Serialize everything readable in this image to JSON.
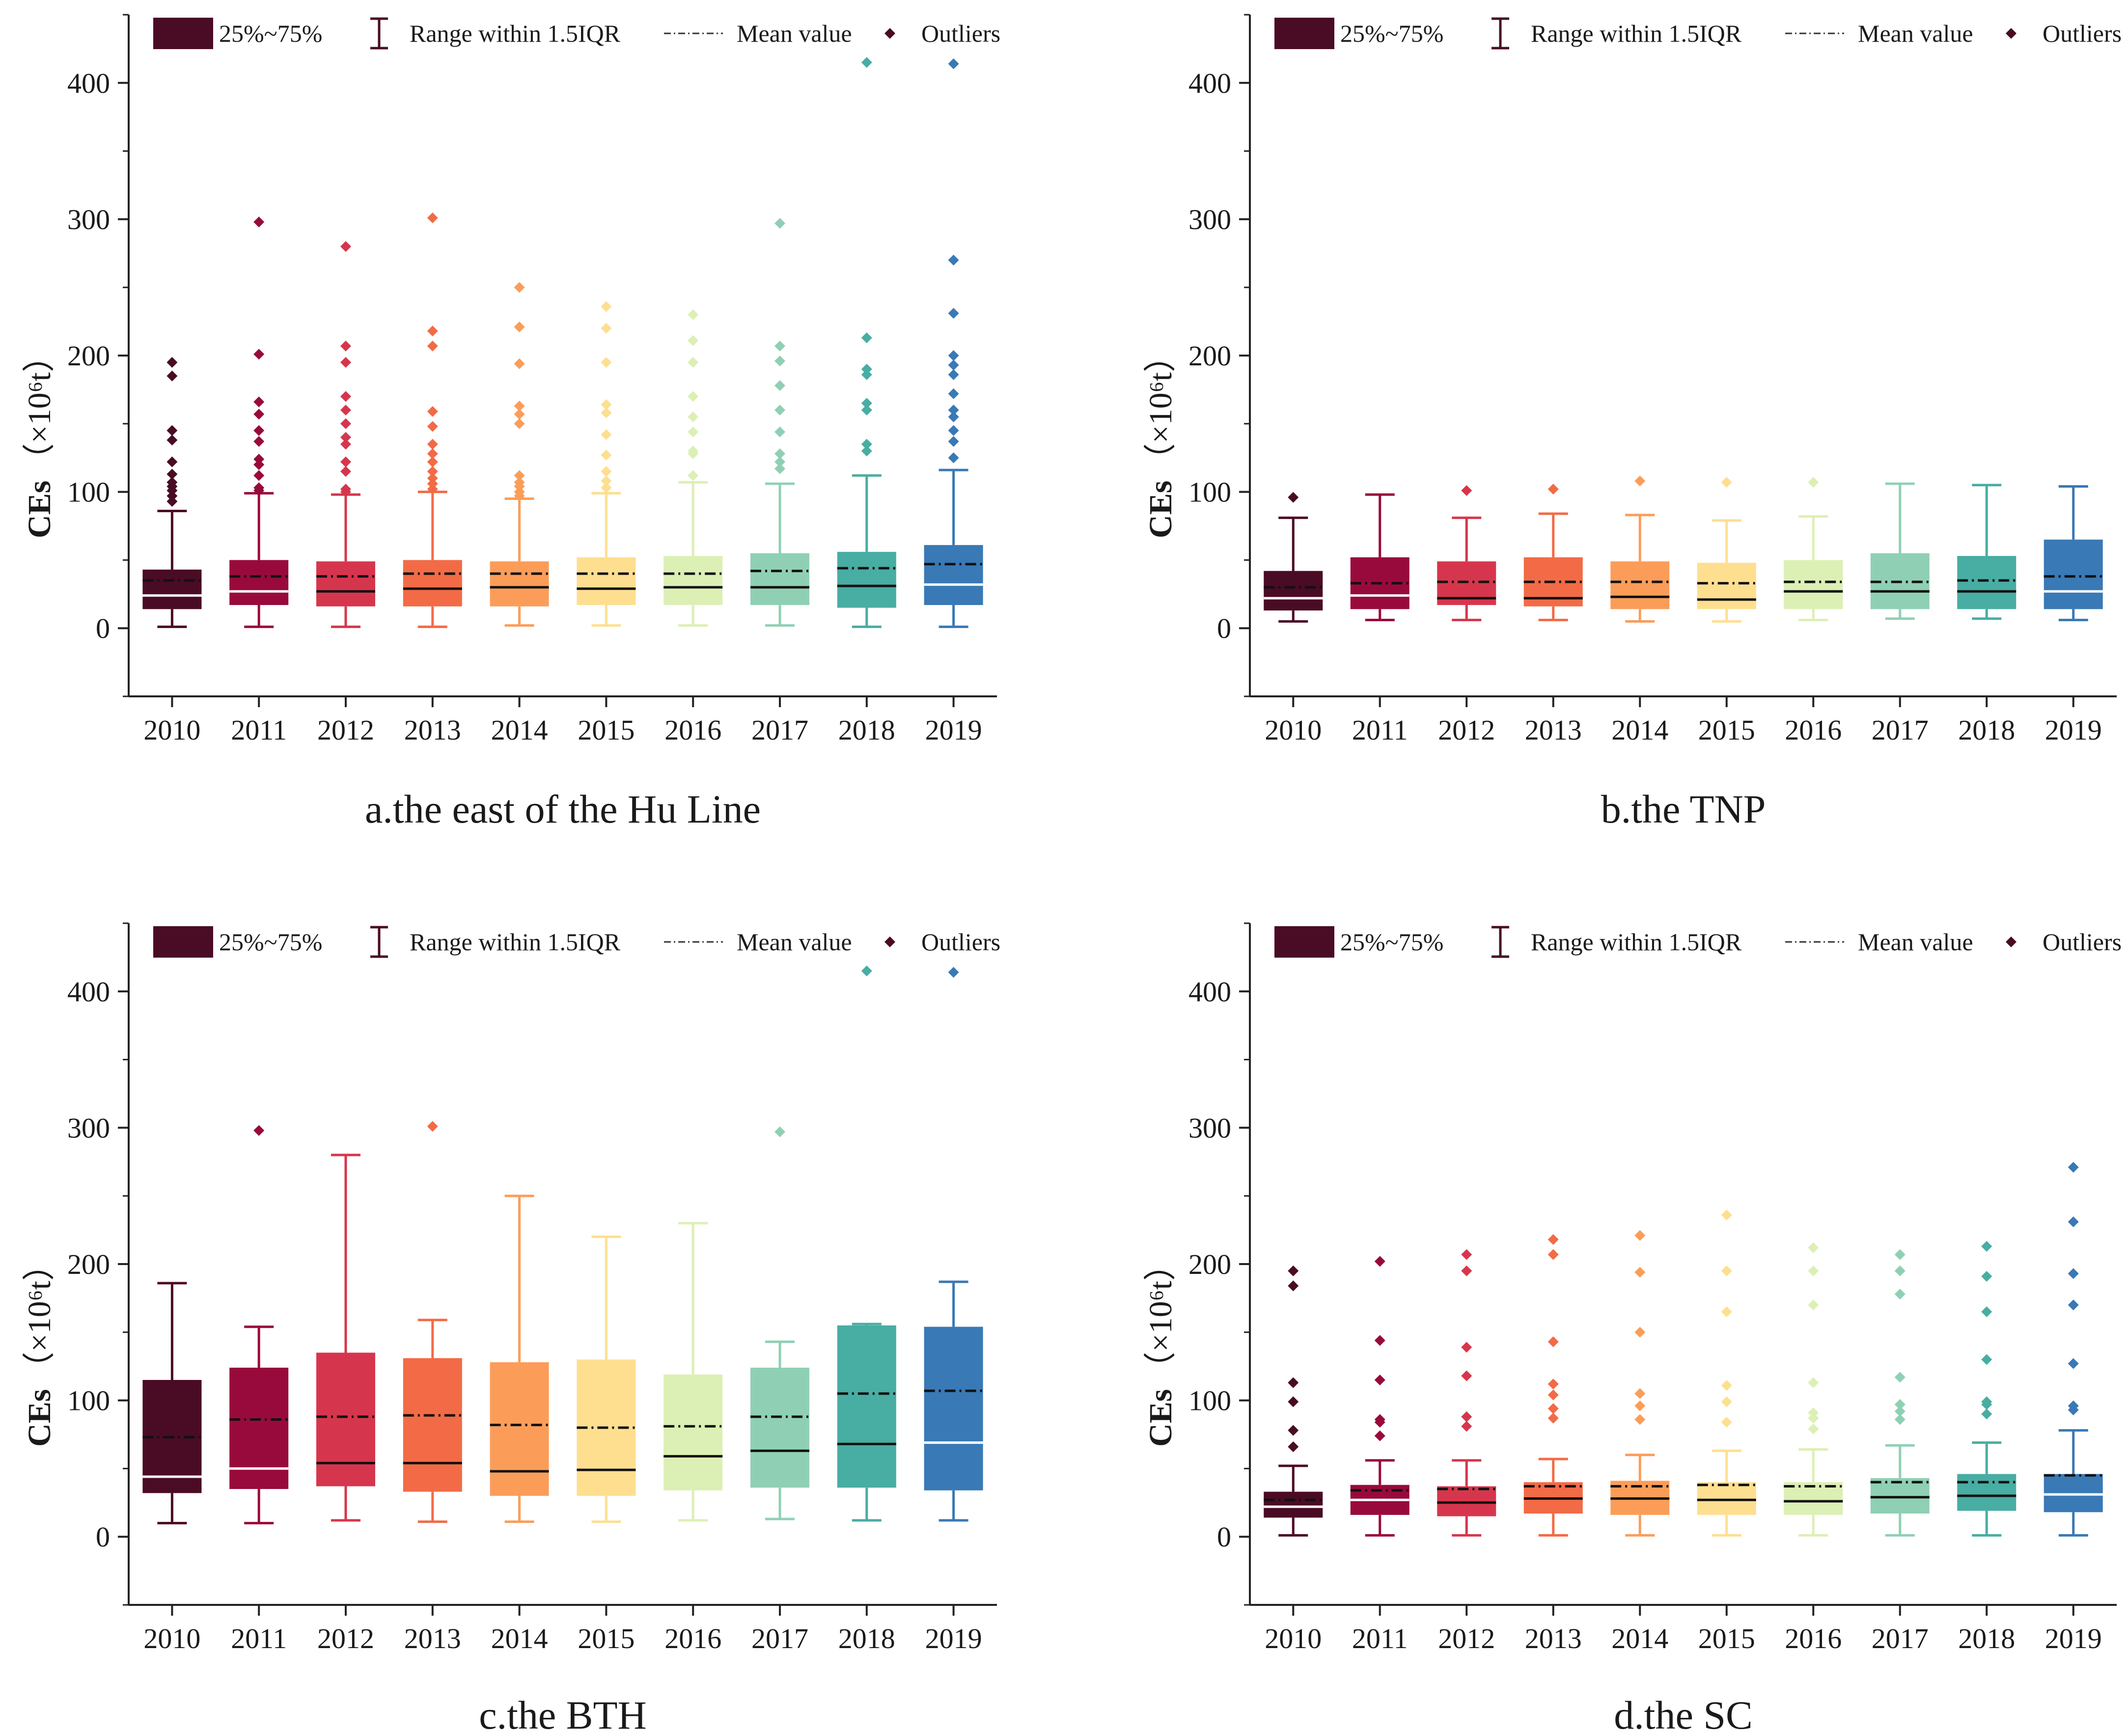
{
  "legend": {
    "box_label": "25%~75%",
    "whisker_label": "Range within 1.5IQR",
    "mean_label": "Mean value",
    "outlier_label": "Outliers"
  },
  "colors": [
    "#4a0b24",
    "#990a3c",
    "#d6364d",
    "#f26b46",
    "#fb9d59",
    "#fedf90",
    "#dcf0b5",
    "#8fd0b4",
    "#48ada3",
    "#3979b5"
  ],
  "chart_data": [
    {
      "type": "box",
      "title": "a.the east of the Hu Line",
      "ylabel": "CEs",
      "ylabel_unit": "（×10⁶t）",
      "xlabel": "",
      "ylim": [
        -50,
        450
      ],
      "yticks": [
        0,
        100,
        200,
        300,
        400
      ],
      "categories": [
        "2010",
        "2011",
        "2012",
        "2013",
        "2014",
        "2015",
        "2016",
        "2017",
        "2018",
        "2019"
      ],
      "series": [
        {
          "name": "2010",
          "whisker_low": 1,
          "q1": 14,
          "median": 24,
          "mean": 35,
          "q3": 43,
          "whisker_high": 86,
          "outliers": [
            93,
            97,
            101,
            104,
            107,
            113,
            122,
            138,
            145,
            185,
            195
          ]
        },
        {
          "name": "2011",
          "whisker_low": 1,
          "q1": 17,
          "median": 27,
          "mean": 38,
          "q3": 50,
          "whisker_high": 99,
          "outliers": [
            101,
            103,
            112,
            120,
            124,
            137,
            145,
            157,
            166,
            201,
            298
          ]
        },
        {
          "name": "2012",
          "whisker_low": 1,
          "q1": 16,
          "median": 27,
          "mean": 38,
          "q3": 49,
          "whisker_high": 98,
          "outliers": [
            100,
            102,
            115,
            122,
            135,
            140,
            150,
            160,
            170,
            195,
            207,
            280
          ]
        },
        {
          "name": "2013",
          "whisker_low": 1,
          "q1": 16,
          "median": 29,
          "mean": 40,
          "q3": 50,
          "whisker_high": 100,
          "outliers": [
            102,
            106,
            110,
            115,
            122,
            128,
            135,
            148,
            159,
            207,
            218,
            301
          ]
        },
        {
          "name": "2014",
          "whisker_low": 2,
          "q1": 16,
          "median": 30,
          "mean": 40,
          "q3": 49,
          "whisker_high": 95,
          "outliers": [
            97,
            100,
            104,
            107,
            112,
            150,
            157,
            163,
            194,
            221,
            250
          ]
        },
        {
          "name": "2015",
          "whisker_low": 2,
          "q1": 17,
          "median": 29,
          "mean": 40,
          "q3": 52,
          "whisker_high": 99,
          "outliers": [
            103,
            108,
            115,
            127,
            142,
            158,
            164,
            195,
            220,
            236
          ]
        },
        {
          "name": "2016",
          "whisker_low": 2,
          "q1": 17,
          "median": 30,
          "mean": 40,
          "q3": 53,
          "whisker_high": 107,
          "outliers": [
            112,
            128,
            130,
            144,
            155,
            170,
            195,
            211,
            230
          ]
        },
        {
          "name": "2017",
          "whisker_low": 2,
          "q1": 17,
          "median": 30,
          "mean": 42,
          "q3": 55,
          "whisker_high": 106,
          "outliers": [
            117,
            122,
            128,
            144,
            160,
            178,
            196,
            207,
            297
          ]
        },
        {
          "name": "2018",
          "whisker_low": 1,
          "q1": 15,
          "median": 31,
          "mean": 44,
          "q3": 56,
          "whisker_high": 112,
          "outliers": [
            130,
            135,
            160,
            165,
            186,
            190,
            213,
            415
          ]
        },
        {
          "name": "2019",
          "whisker_low": 1,
          "q1": 17,
          "median": 32,
          "mean": 47,
          "q3": 61,
          "whisker_high": 116,
          "outliers": [
            125,
            137,
            145,
            155,
            160,
            172,
            186,
            193,
            200,
            231,
            270,
            414
          ]
        }
      ]
    },
    {
      "type": "box",
      "title": "b.the TNP",
      "ylabel": "CEs",
      "ylabel_unit": "（×10⁶t）",
      "xlabel": "",
      "ylim": [
        -50,
        450
      ],
      "yticks": [
        0,
        100,
        200,
        300,
        400
      ],
      "categories": [
        "2010",
        "2011",
        "2012",
        "2013",
        "2014",
        "2015",
        "2016",
        "2017",
        "2018",
        "2019"
      ],
      "series": [
        {
          "name": "2010",
          "whisker_low": 5,
          "q1": 13,
          "median": 22,
          "mean": 30,
          "q3": 42,
          "whisker_high": 81,
          "outliers": [
            96
          ]
        },
        {
          "name": "2011",
          "whisker_low": 6,
          "q1": 14,
          "median": 24,
          "mean": 33,
          "q3": 52,
          "whisker_high": 98,
          "outliers": []
        },
        {
          "name": "2012",
          "whisker_low": 6,
          "q1": 17,
          "median": 22,
          "mean": 34,
          "q3": 49,
          "whisker_high": 81,
          "outliers": [
            101
          ]
        },
        {
          "name": "2013",
          "whisker_low": 6,
          "q1": 16,
          "median": 22,
          "mean": 34,
          "q3": 52,
          "whisker_high": 84,
          "outliers": [
            102
          ]
        },
        {
          "name": "2014",
          "whisker_low": 5,
          "q1": 14,
          "median": 23,
          "mean": 34,
          "q3": 49,
          "whisker_high": 83,
          "outliers": [
            108
          ]
        },
        {
          "name": "2015",
          "whisker_low": 5,
          "q1": 14,
          "median": 21,
          "mean": 33,
          "q3": 48,
          "whisker_high": 79,
          "outliers": [
            107
          ]
        },
        {
          "name": "2016",
          "whisker_low": 6,
          "q1": 14,
          "median": 27,
          "mean": 34,
          "q3": 50,
          "whisker_high": 82,
          "outliers": [
            107
          ]
        },
        {
          "name": "2017",
          "whisker_low": 7,
          "q1": 14,
          "median": 27,
          "mean": 34,
          "q3": 55,
          "whisker_high": 106,
          "outliers": []
        },
        {
          "name": "2018",
          "whisker_low": 7,
          "q1": 14,
          "median": 27,
          "mean": 35,
          "q3": 53,
          "whisker_high": 105,
          "outliers": []
        },
        {
          "name": "2019",
          "whisker_low": 6,
          "q1": 14,
          "median": 27,
          "mean": 38,
          "q3": 65,
          "whisker_high": 104,
          "outliers": []
        }
      ]
    },
    {
      "type": "box",
      "title": "c.the BTH",
      "ylabel": "CEs",
      "ylabel_unit": "（×10⁶t）",
      "xlabel": "",
      "ylim": [
        -50,
        450
      ],
      "yticks": [
        0,
        100,
        200,
        300,
        400
      ],
      "categories": [
        "2010",
        "2011",
        "2012",
        "2013",
        "2014",
        "2015",
        "2016",
        "2017",
        "2018",
        "2019"
      ],
      "series": [
        {
          "name": "2010",
          "whisker_low": 10,
          "q1": 32,
          "median": 44,
          "mean": 73,
          "q3": 115,
          "whisker_high": 186,
          "outliers": []
        },
        {
          "name": "2011",
          "whisker_low": 10,
          "q1": 35,
          "median": 50,
          "mean": 86,
          "q3": 124,
          "whisker_high": 154,
          "outliers": [
            298
          ]
        },
        {
          "name": "2012",
          "whisker_low": 12,
          "q1": 37,
          "median": 54,
          "mean": 88,
          "q3": 135,
          "whisker_high": 280,
          "outliers": []
        },
        {
          "name": "2013",
          "whisker_low": 11,
          "q1": 33,
          "median": 54,
          "mean": 89,
          "q3": 131,
          "whisker_high": 159,
          "outliers": [
            301
          ]
        },
        {
          "name": "2014",
          "whisker_low": 11,
          "q1": 30,
          "median": 48,
          "mean": 82,
          "q3": 128,
          "whisker_high": 250,
          "outliers": []
        },
        {
          "name": "2015",
          "whisker_low": 11,
          "q1": 30,
          "median": 49,
          "mean": 80,
          "q3": 130,
          "whisker_high": 220,
          "outliers": []
        },
        {
          "name": "2016",
          "whisker_low": 12,
          "q1": 34,
          "median": 59,
          "mean": 81,
          "q3": 119,
          "whisker_high": 230,
          "outliers": []
        },
        {
          "name": "2017",
          "whisker_low": 13,
          "q1": 36,
          "median": 63,
          "mean": 88,
          "q3": 124,
          "whisker_high": 143,
          "outliers": [
            297
          ]
        },
        {
          "name": "2018",
          "whisker_low": 12,
          "q1": 36,
          "median": 68,
          "mean": 105,
          "q3": 155,
          "whisker_high": 156,
          "outliers": [
            415
          ]
        },
        {
          "name": "2019",
          "whisker_low": 12,
          "q1": 34,
          "median": 69,
          "mean": 107,
          "q3": 154,
          "whisker_high": 187,
          "outliers": [
            414
          ]
        }
      ]
    },
    {
      "type": "box",
      "title": "d.the SC",
      "ylabel": "CEs",
      "ylabel_unit": "（×10⁶t）",
      "xlabel": "",
      "ylim": [
        -50,
        450
      ],
      "yticks": [
        0,
        100,
        200,
        300,
        400
      ],
      "categories": [
        "2010",
        "2011",
        "2012",
        "2013",
        "2014",
        "2015",
        "2016",
        "2017",
        "2018",
        "2019"
      ],
      "series": [
        {
          "name": "2010",
          "whisker_low": 1,
          "q1": 14,
          "median": 22,
          "mean": 27,
          "q3": 33,
          "whisker_high": 52,
          "outliers": [
            66,
            78,
            99,
            113,
            184,
            195
          ]
        },
        {
          "name": "2011",
          "whisker_low": 1,
          "q1": 16,
          "median": 27,
          "mean": 34,
          "q3": 38,
          "whisker_high": 56,
          "outliers": [
            74,
            84,
            86,
            115,
            144,
            202
          ]
        },
        {
          "name": "2012",
          "whisker_low": 1,
          "q1": 15,
          "median": 25,
          "mean": 35,
          "q3": 37,
          "whisker_high": 56,
          "outliers": [
            81,
            88,
            118,
            139,
            195,
            207
          ]
        },
        {
          "name": "2013",
          "whisker_low": 1,
          "q1": 17,
          "median": 28,
          "mean": 37,
          "q3": 40,
          "whisker_high": 57,
          "outliers": [
            87,
            94,
            104,
            112,
            143,
            207,
            218
          ]
        },
        {
          "name": "2014",
          "whisker_low": 1,
          "q1": 16,
          "median": 28,
          "mean": 37,
          "q3": 41,
          "whisker_high": 60,
          "outliers": [
            86,
            96,
            105,
            150,
            194,
            221
          ]
        },
        {
          "name": "2015",
          "whisker_low": 1,
          "q1": 16,
          "median": 27,
          "mean": 38,
          "q3": 40,
          "whisker_high": 63,
          "outliers": [
            84,
            99,
            111,
            165,
            195,
            236
          ]
        },
        {
          "name": "2016",
          "whisker_low": 1,
          "q1": 16,
          "median": 26,
          "mean": 37,
          "q3": 40,
          "whisker_high": 64,
          "outliers": [
            79,
            87,
            91,
            113,
            170,
            195,
            212
          ]
        },
        {
          "name": "2017",
          "whisker_low": 1,
          "q1": 17,
          "median": 29,
          "mean": 40,
          "q3": 43,
          "whisker_high": 67,
          "outliers": [
            86,
            92,
            97,
            117,
            178,
            195,
            207
          ]
        },
        {
          "name": "2018",
          "whisker_low": 1,
          "q1": 19,
          "median": 30,
          "mean": 40,
          "q3": 46,
          "whisker_high": 69,
          "outliers": [
            90,
            97,
            99,
            130,
            165,
            191,
            213
          ]
        },
        {
          "name": "2019",
          "whisker_low": 1,
          "q1": 18,
          "median": 31,
          "mean": 45,
          "q3": 46,
          "whisker_high": 78,
          "outliers": [
            93,
            96,
            127,
            170,
            193,
            231,
            271
          ]
        }
      ]
    }
  ]
}
